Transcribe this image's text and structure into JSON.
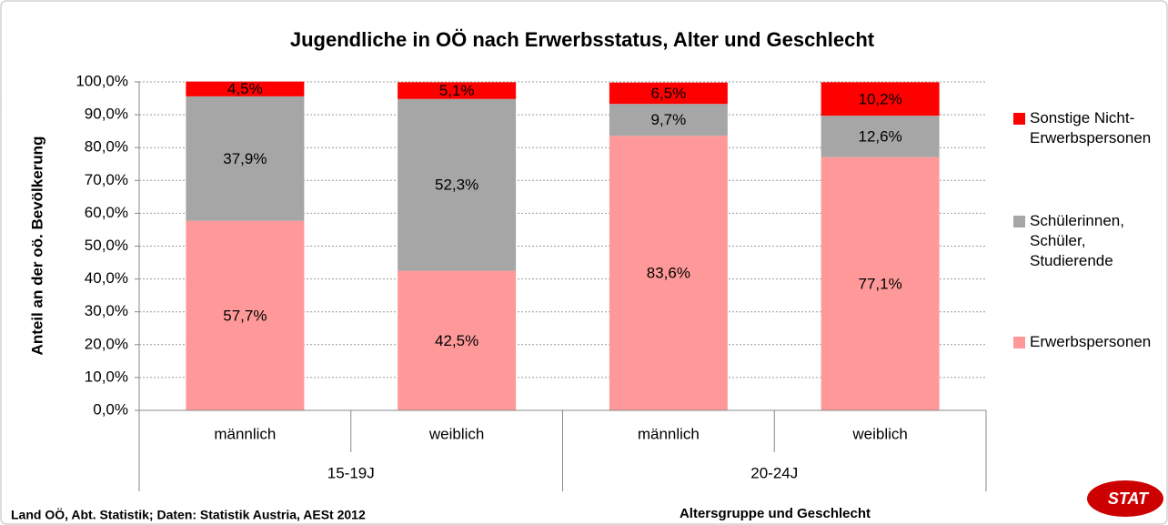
{
  "chart_data": {
    "type": "stacked_bar",
    "title": "Jugendliche in OÖ nach Erwerbsstatus, Alter und Geschlecht",
    "y_label": "Anteil an der oö. Bevölkerung",
    "x_label": "Altersgruppe und Geschlecht",
    "source": "Land OÖ, Abt. Statistik; Daten: Statistik Austria, AESt 2012",
    "logo": "STAT",
    "categories": [
      "männlich",
      "weiblich",
      "männlich",
      "weiblich"
    ],
    "groups": [
      "15-19J",
      "20-24J"
    ],
    "series": [
      {
        "name": "Erwerbspersonen",
        "color": "#ff9999",
        "values": [
          57.7,
          42.5,
          83.6,
          77.1
        ],
        "value_labels": [
          "57,7%",
          "42,5%",
          "83,6%",
          "77,1%"
        ]
      },
      {
        "name": "Schülerinnen, Schüler, Studierende",
        "color": "#a6a6a6",
        "values": [
          37.9,
          52.3,
          9.7,
          12.6
        ],
        "value_labels": [
          "37,9%",
          "52,3%",
          "9,7%",
          "12,6%"
        ]
      },
      {
        "name": "Sonstige Nicht-Erwerbspersonen",
        "color": "#ff0000",
        "values": [
          4.5,
          5.1,
          6.5,
          10.2
        ],
        "value_labels": [
          "4,5%",
          "5,1%",
          "6,5%",
          "10,2%"
        ]
      }
    ],
    "ylim": [
      0,
      100
    ],
    "yticks": [
      {
        "value": 0,
        "label": "0,0%"
      },
      {
        "value": 10,
        "label": "10,0%"
      },
      {
        "value": 20,
        "label": "20,0%"
      },
      {
        "value": 30,
        "label": "30,0%"
      },
      {
        "value": 40,
        "label": "40,0%"
      },
      {
        "value": 50,
        "label": "50,0%"
      },
      {
        "value": 60,
        "label": "60,0%"
      },
      {
        "value": 70,
        "label": "70,0%"
      },
      {
        "value": 80,
        "label": "80,0%"
      },
      {
        "value": 90,
        "label": "90,0%"
      },
      {
        "value": 100,
        "label": "100,0%"
      }
    ],
    "grid": true,
    "legend": "right"
  }
}
